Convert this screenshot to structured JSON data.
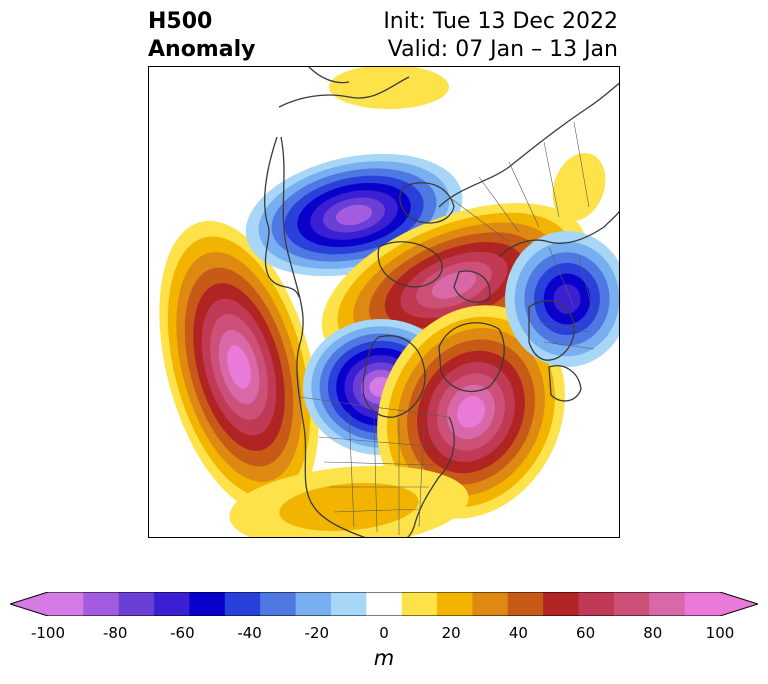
{
  "title": {
    "left_line1": "H500",
    "left_line2": "Anomaly",
    "right_line1": "Init: Tue 13 Dec 2022",
    "right_line2": "Valid: 07 Jan – 13 Jan"
  },
  "colorbar": {
    "unit": "m",
    "min": -100,
    "max": 100,
    "step": 10,
    "extend": "both",
    "tick_labels": [
      "-100",
      "-80",
      "-60",
      "-40",
      "-20",
      "0",
      "20",
      "40",
      "60",
      "80",
      "100"
    ],
    "colors": [
      "#d47be6",
      "#a35be0",
      "#6a3fd6",
      "#3a20d2",
      "#0a00cc",
      "#2a40db",
      "#5078e3",
      "#78aff0",
      "#a8d6f7",
      "#ffffff",
      "#fde24a",
      "#f3b400",
      "#de8a12",
      "#c75a17",
      "#b12424",
      "#c13a55",
      "#cd5079",
      "#d868a8",
      "#e97ad7"
    ],
    "under_color": "#d47be6",
    "over_color": "#e97ad7"
  },
  "map": {
    "projection": "north-polar-stereographic",
    "features": [
      "coastlines",
      "country-borders",
      "us-state-borders"
    ]
  }
}
